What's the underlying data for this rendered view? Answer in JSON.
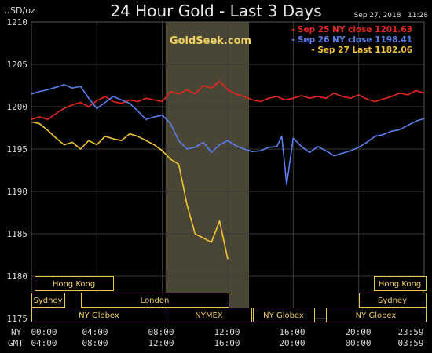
{
  "chart": {
    "title": "24 Hour Gold - Last 3 Days",
    "unit_label": "USD/oz",
    "timestamp": "Sep 27, 2018   11:28",
    "watermark": "GoldSeek.com"
  },
  "colors": {
    "background": "#000000",
    "grid": "#3a3a3a",
    "highlight": "#4a4636",
    "axis_text": "#d8d8d8",
    "session_border": "#e6c84e",
    "session_text": "#f0d060",
    "sep25": "#e8261e",
    "sep26": "#5a7ff0",
    "sep27": "#f4c430"
  },
  "sessions": [
    {
      "label": "Hong Kong"
    },
    {
      "label": "Hong Kong"
    },
    {
      "label": "Sydney"
    },
    {
      "label": "London"
    },
    {
      "label": "Sydney"
    },
    {
      "label": "NY Globex"
    },
    {
      "label": "NYMEX"
    },
    {
      "label": "NY Globex"
    },
    {
      "label": "NY Globex"
    }
  ],
  "xaxis": {
    "row_labels": [
      "NY",
      "GMT"
    ],
    "ny_ticks": [
      "00:00",
      "04:00",
      "08:00",
      "12:00",
      "16:00",
      "20:00",
      "23:59"
    ],
    "gmt_ticks": [
      "04:00",
      "08:00",
      "12:00",
      "16:00",
      "20:00",
      "00:00",
      "03:59"
    ]
  },
  "chart_data": {
    "type": "line",
    "title": "24 Hour Gold - Last 3 Days",
    "ylabel": "USD/oz",
    "ylim": [
      1175,
      1210
    ],
    "xlim": [
      0,
      24
    ],
    "y_ticks": [
      1175,
      1180,
      1185,
      1190,
      1195,
      1200,
      1205,
      1210
    ],
    "x_ticks_ny": [
      "00:00",
      "04:00",
      "08:00",
      "12:00",
      "16:00",
      "20:00",
      "23:59"
    ],
    "x_ticks_gmt": [
      "04:00",
      "08:00",
      "12:00",
      "16:00",
      "20:00",
      "00:00",
      "03:59"
    ],
    "grid": true,
    "legend": "top-right",
    "highlight_band_hours": [
      8.2,
      13.3
    ],
    "series": [
      {
        "name": "Sep 25 NY close 1201.63",
        "color": "#e8261e",
        "x": [
          0,
          0.5,
          1,
          1.5,
          2,
          2.5,
          3,
          3.5,
          4,
          4.5,
          5,
          5.5,
          6,
          6.5,
          7,
          7.5,
          8,
          8.5,
          9,
          9.5,
          10,
          10.5,
          11,
          11.5,
          12,
          12.5,
          13,
          13.5,
          14,
          14.5,
          15,
          15.5,
          16,
          16.5,
          17,
          17.5,
          18,
          18.5,
          19,
          19.5,
          20,
          20.5,
          21,
          21.5,
          22,
          22.5,
          23,
          23.5,
          24
        ],
        "y": [
          1198.5,
          1198.8,
          1198.5,
          1199.2,
          1199.8,
          1200.2,
          1200.5,
          1200.0,
          1200.7,
          1201.2,
          1200.6,
          1200.4,
          1200.8,
          1200.6,
          1201.0,
          1200.8,
          1200.6,
          1201.8,
          1201.5,
          1202.0,
          1201.5,
          1202.5,
          1202.2,
          1203.0,
          1202.0,
          1201.5,
          1201.2,
          1200.8,
          1200.6,
          1201.0,
          1201.2,
          1200.8,
          1201.0,
          1201.3,
          1201.0,
          1201.2,
          1201.0,
          1201.6,
          1201.2,
          1201.0,
          1201.4,
          1200.9,
          1200.6,
          1200.9,
          1201.2,
          1201.6,
          1201.4,
          1201.9,
          1201.6
        ]
      },
      {
        "name": "Sep 26 NY close 1198.41",
        "color": "#5a7ff0",
        "x": [
          0,
          0.5,
          1,
          1.5,
          2,
          2.5,
          3,
          3.5,
          4,
          4.5,
          5,
          5.5,
          6,
          6.5,
          7,
          7.5,
          8,
          8.5,
          9,
          9.5,
          10,
          10.5,
          11,
          11.5,
          12,
          12.5,
          13,
          13.5,
          14,
          14.5,
          15,
          15.3,
          15.6,
          16,
          16.5,
          17,
          17.5,
          18,
          18.5,
          19,
          19.5,
          20,
          20.5,
          21,
          21.5,
          22,
          22.5,
          23,
          23.5,
          24
        ],
        "y": [
          1201.5,
          1201.8,
          1202.0,
          1202.3,
          1202.6,
          1202.2,
          1202.4,
          1201.0,
          1199.8,
          1200.5,
          1201.2,
          1200.8,
          1200.4,
          1199.5,
          1198.5,
          1198.8,
          1199.0,
          1198.0,
          1196.0,
          1195.0,
          1195.2,
          1195.8,
          1194.6,
          1195.5,
          1196.0,
          1195.4,
          1195.0,
          1194.7,
          1194.8,
          1195.2,
          1195.3,
          1196.5,
          1190.8,
          1196.3,
          1195.3,
          1194.6,
          1195.3,
          1194.8,
          1194.2,
          1194.5,
          1194.8,
          1195.2,
          1195.8,
          1196.5,
          1196.7,
          1197.1,
          1197.3,
          1197.8,
          1198.3,
          1198.6
        ]
      },
      {
        "name": "Sep 27 Last 1182.06",
        "color": "#f4c430",
        "x": [
          0,
          0.5,
          1,
          1.5,
          2,
          2.5,
          3,
          3.5,
          4,
          4.5,
          5,
          5.5,
          6,
          6.5,
          7,
          7.5,
          8,
          8.5,
          9,
          9.5,
          10,
          10.5,
          11,
          11.5,
          12
        ],
        "y": [
          1198.2,
          1198.0,
          1197.2,
          1196.3,
          1195.5,
          1195.8,
          1195.0,
          1196.0,
          1195.5,
          1196.5,
          1196.2,
          1196.0,
          1196.8,
          1196.5,
          1196.0,
          1195.5,
          1194.8,
          1193.8,
          1193.2,
          1188.5,
          1185.0,
          1184.5,
          1184.0,
          1186.5,
          1182.0
        ]
      }
    ]
  }
}
